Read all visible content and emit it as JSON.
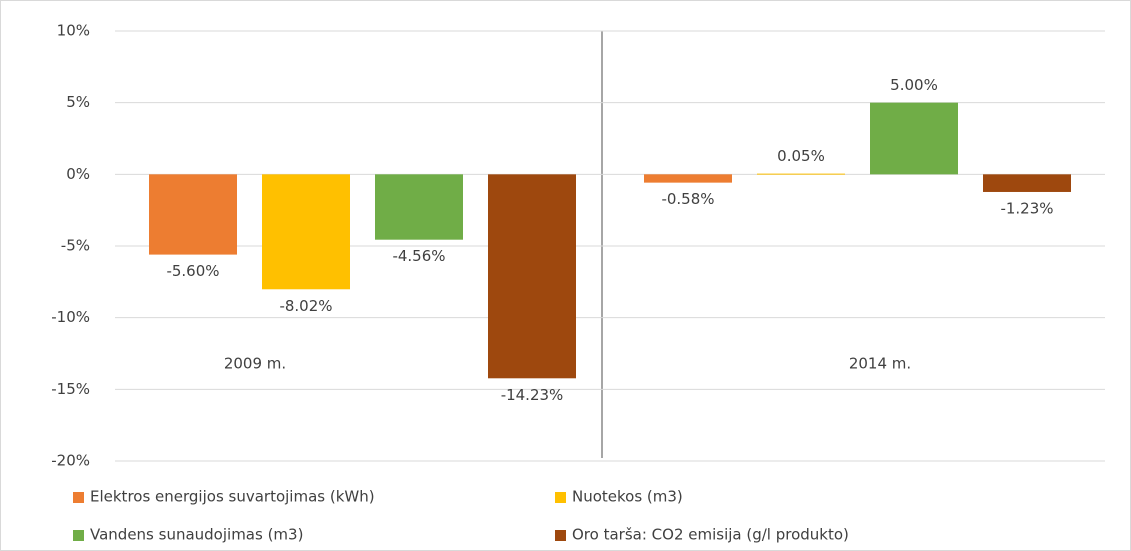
{
  "chart_data": {
    "type": "bar",
    "categories": [
      "2009 m.",
      "2014 m."
    ],
    "series": [
      {
        "name": "Elektros energijos suvartojimas (kWh)",
        "color": "#ed7d31",
        "values": [
          -5.6,
          -0.58
        ],
        "value_labels": [
          "-5.60%",
          "-0.58%"
        ]
      },
      {
        "name": "Nuotekos  (m3)",
        "color": "#ffc000",
        "values": [
          -8.02,
          0.05
        ],
        "value_labels": [
          "-8.02%",
          "0.05%"
        ]
      },
      {
        "name": "Vandens sunaudojimas  (m3)",
        "color": "#70ad47",
        "values": [
          -4.56,
          5.0
        ],
        "value_labels": [
          "-4.56%",
          "5.00%"
        ]
      },
      {
        "name": "Oro tarša: CO2 emisija (g/l produkto)",
        "color": "#9e480e",
        "values": [
          -14.23,
          -1.23
        ],
        "value_labels": [
          "-14.23%",
          "-1.23%"
        ]
      }
    ],
    "ylim": [
      -20,
      10
    ],
    "yticks": [
      {
        "value": -20,
        "label": "-20%"
      },
      {
        "value": -15,
        "label": "-15%"
      },
      {
        "value": -10,
        "label": "-10%"
      },
      {
        "value": -5,
        "label": "-5%"
      },
      {
        "value": 0,
        "label": "0%"
      },
      {
        "value": 5,
        "label": "5%"
      },
      {
        "value": 10,
        "label": "10%"
      }
    ],
    "grid": true,
    "legend": "bottom"
  }
}
